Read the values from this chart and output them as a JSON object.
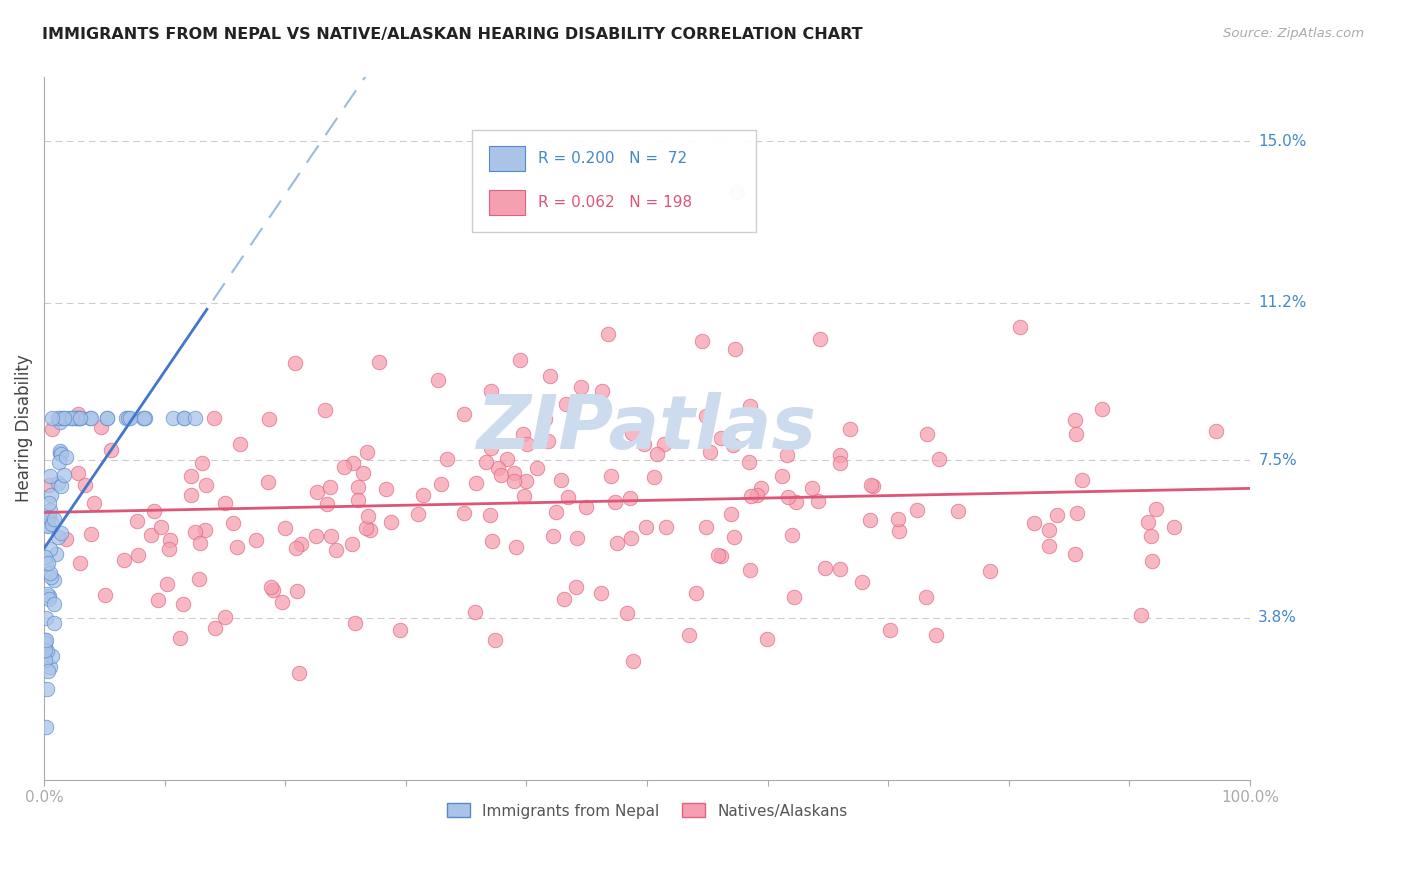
{
  "title": "IMMIGRANTS FROM NEPAL VS NATIVE/ALASKAN HEARING DISABILITY CORRELATION CHART",
  "source": "Source: ZipAtlas.com",
  "ylabel": "Hearing Disability",
  "legend_blue_R": "0.200",
  "legend_blue_N": "72",
  "legend_pink_R": "0.062",
  "legend_pink_N": "198",
  "legend_blue_label": "Immigrants from Nepal",
  "legend_pink_label": "Natives/Alaskans",
  "ytick_labels": [
    "3.8%",
    "7.5%",
    "11.2%",
    "15.0%"
  ],
  "ytick_values": [
    0.038,
    0.075,
    0.112,
    0.15
  ],
  "xlim": [
    0.0,
    1.0
  ],
  "ylim": [
    0.0,
    0.165
  ],
  "background_color": "#ffffff",
  "blue_color": "#aac4e8",
  "pink_color": "#f5a0b0",
  "blue_edge_color": "#5588cc",
  "pink_edge_color": "#e06080",
  "blue_line_color": "#4477cc",
  "pink_line_color": "#dd5577",
  "dashed_line_color": "#99bbdd",
  "grid_color": "#cccccc",
  "title_color": "#222222",
  "axis_label_color": "#4488cc",
  "watermark_color": "#ccdcee",
  "xtick_label_color": "#4488cc"
}
